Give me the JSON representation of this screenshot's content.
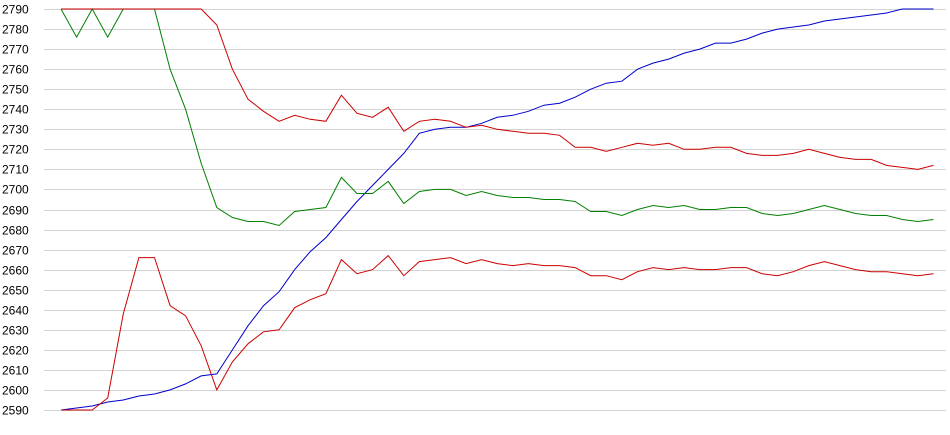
{
  "chart_data": {
    "type": "line",
    "title": "",
    "xlabel": "",
    "ylabel": "",
    "ylim": [
      2590,
      2790
    ],
    "yticks": [
      2590,
      2600,
      2610,
      2620,
      2630,
      2640,
      2650,
      2660,
      2670,
      2680,
      2690,
      2700,
      2710,
      2720,
      2730,
      2740,
      2750,
      2760,
      2770,
      2780,
      2790
    ],
    "xlim": [
      0,
      56
    ],
    "grid": "horizontal",
    "legend": "none",
    "series": [
      {
        "color": "#0000cc",
        "x": [
          0,
          1,
          2,
          3,
          4,
          5,
          6,
          7,
          8,
          9,
          10,
          11,
          12,
          13,
          14,
          15,
          16,
          17,
          18,
          19,
          20,
          21,
          22,
          23,
          24,
          25,
          26,
          27,
          28,
          29,
          30,
          31,
          32,
          33,
          34,
          35,
          36,
          37,
          38,
          39,
          40,
          41,
          42,
          43,
          44,
          45,
          46,
          47,
          48,
          49,
          50,
          51,
          52,
          53,
          54,
          55,
          56
        ],
        "values": [
          2590,
          2591,
          2592,
          2594,
          2595,
          2597,
          2598,
          2600,
          2603,
          2607,
          2608,
          2620,
          2632,
          2642,
          2649,
          2660,
          2669,
          2676,
          2685,
          2694,
          2702,
          2710,
          2718,
          2728,
          2730,
          2731,
          2731,
          2733,
          2736,
          2737,
          2739,
          2742,
          2743,
          2746,
          2750,
          2753,
          2754,
          2760,
          2763,
          2765,
          2768,
          2770,
          2773,
          2773,
          2775,
          2778,
          2780,
          2781,
          2782,
          2784,
          2785,
          2786,
          2787,
          2788,
          2790,
          2792,
          2794
        ]
      },
      {
        "color": "#008000",
        "x": [
          0,
          1,
          2,
          3,
          4,
          5,
          6,
          7,
          8,
          9,
          10,
          11,
          12,
          13,
          14,
          15,
          16,
          17,
          18,
          19,
          20,
          21,
          22,
          23,
          24,
          25,
          26,
          27,
          28,
          29,
          30,
          31,
          32,
          33,
          34,
          35,
          36,
          37,
          38,
          39,
          40,
          41,
          42,
          43,
          44,
          45,
          46,
          47,
          48,
          49,
          50,
          51,
          52,
          53,
          54,
          55,
          56
        ],
        "values": [
          2790,
          2776,
          2790,
          2776,
          2790,
          2790,
          2790,
          2760,
          2740,
          2713,
          2691,
          2686,
          2684,
          2684,
          2682,
          2689,
          2690,
          2691,
          2706,
          2698,
          2698,
          2704,
          2693,
          2699,
          2700,
          2700,
          2697,
          2699,
          2697,
          2696,
          2696,
          2695,
          2695,
          2694,
          2689,
          2689,
          2687,
          2690,
          2692,
          2691,
          2692,
          2690,
          2690,
          2691,
          2691,
          2688,
          2687,
          2688,
          2690,
          2692,
          2690,
          2688,
          2687,
          2687,
          2685,
          2684,
          2685
        ]
      },
      {
        "color": "#cc0000",
        "x": [
          0,
          1,
          2,
          3,
          4,
          5,
          6,
          7,
          8,
          9,
          10,
          11,
          12,
          13,
          14,
          15,
          16,
          17,
          18,
          19,
          20,
          21,
          22,
          23,
          24,
          25,
          26,
          27,
          28,
          29,
          30,
          31,
          32,
          33,
          34,
          35,
          36,
          37,
          38,
          39,
          40,
          41,
          42,
          43,
          44,
          45,
          46,
          47,
          48,
          49,
          50,
          51,
          52,
          53,
          54,
          55,
          56
        ],
        "values": [
          2790,
          2790,
          2790,
          2790,
          2790,
          2790,
          2790,
          2790,
          2790,
          2790,
          2782,
          2760,
          2745,
          2739,
          2734,
          2737,
          2735,
          2734,
          2747,
          2738,
          2736,
          2741,
          2729,
          2734,
          2735,
          2734,
          2731,
          2732,
          2730,
          2729,
          2728,
          2728,
          2727,
          2721,
          2721,
          2719,
          2721,
          2723,
          2722,
          2723,
          2720,
          2720,
          2721,
          2721,
          2718,
          2717,
          2717,
          2718,
          2720,
          2718,
          2716,
          2715,
          2715,
          2712,
          2711,
          2710,
          2712
        ]
      },
      {
        "color": "#cc0000",
        "x": [
          0,
          1,
          2,
          3,
          4,
          5,
          6,
          7,
          8,
          9,
          10,
          11,
          12,
          13,
          14,
          15,
          16,
          17,
          18,
          19,
          20,
          21,
          22,
          23,
          24,
          25,
          26,
          27,
          28,
          29,
          30,
          31,
          32,
          33,
          34,
          35,
          36,
          37,
          38,
          39,
          40,
          41,
          42,
          43,
          44,
          45,
          46,
          47,
          48,
          49,
          50,
          51,
          52,
          53,
          54,
          55,
          56
        ],
        "values": [
          2590,
          2590,
          2590,
          2596,
          2638,
          2666,
          2666,
          2642,
          2637,
          2622,
          2600,
          2614,
          2623,
          2629,
          2630,
          2641,
          2645,
          2648,
          2665,
          2658,
          2660,
          2667,
          2657,
          2664,
          2665,
          2666,
          2663,
          2665,
          2663,
          2662,
          2663,
          2662,
          2662,
          2661,
          2657,
          2657,
          2655,
          2659,
          2661,
          2660,
          2661,
          2660,
          2660,
          2661,
          2661,
          2658,
          2657,
          2659,
          2662,
          2664,
          2662,
          2660,
          2659,
          2659,
          2658,
          2657,
          2658
        ]
      }
    ]
  }
}
